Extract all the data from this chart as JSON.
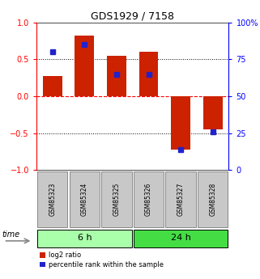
{
  "title": "GDS1929 / 7158",
  "samples": [
    "GSM85323",
    "GSM85324",
    "GSM85325",
    "GSM85326",
    "GSM85327",
    "GSM85328"
  ],
  "log2_ratio": [
    0.27,
    0.82,
    0.55,
    0.6,
    -0.72,
    -0.45
  ],
  "percentile_rank": [
    80,
    85,
    65,
    65,
    14,
    26
  ],
  "groups": [
    {
      "label": "6 h",
      "indices": [
        0,
        1,
        2
      ],
      "color": "#AAFFAA"
    },
    {
      "label": "24 h",
      "indices": [
        3,
        4,
        5
      ],
      "color": "#44DD44"
    }
  ],
  "bar_color_red": "#CC2200",
  "bar_color_blue": "#2222CC",
  "ylim_left": [
    -1,
    1
  ],
  "ylim_right": [
    0,
    100
  ],
  "yticks_left": [
    -1,
    -0.5,
    0,
    0.5,
    1
  ],
  "yticks_right": [
    0,
    25,
    50,
    75,
    100
  ],
  "hlines_black": [
    -0.5,
    0.5
  ],
  "time_label": "time",
  "legend_red": "log2 ratio",
  "legend_blue": "percentile rank within the sample",
  "bar_width": 0.6,
  "sample_box_color": "#C8C8C8",
  "sample_box_edge": "#888888"
}
